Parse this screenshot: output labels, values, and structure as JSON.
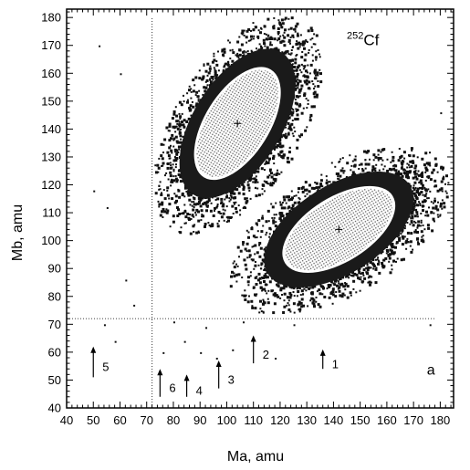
{
  "chart_data": {
    "type": "heatmap",
    "title": "",
    "xlabel": "Ma, amu",
    "ylabel": "Mb, amu",
    "xlim": [
      40,
      185
    ],
    "ylim": [
      40,
      183
    ],
    "x_ticks": [
      40,
      50,
      60,
      70,
      80,
      90,
      100,
      110,
      120,
      130,
      140,
      150,
      160,
      170,
      180
    ],
    "y_ticks": [
      40,
      50,
      60,
      70,
      80,
      90,
      100,
      110,
      120,
      130,
      140,
      150,
      160,
      170,
      180
    ],
    "isotope_label": {
      "mass": "252",
      "symbol": "Cf",
      "x": 145,
      "y": 170
    },
    "panel_label": {
      "text": "a",
      "x": 175,
      "y": 52
    },
    "guide_lines": {
      "vertical_x": 72,
      "horizontal_y": 72
    },
    "clusters": [
      {
        "name_label": "",
        "center": [
          104,
          142
        ],
        "rotation_deg": -58,
        "semi_axes": [
          29,
          11
        ]
      },
      {
        "name_label": "",
        "center": [
          142,
          104
        ],
        "rotation_deg": -32,
        "semi_axes": [
          29,
          11
        ]
      }
    ],
    "arrows": [
      {
        "label": "1",
        "x": 136,
        "y_tip": 61,
        "y_tail": 54
      },
      {
        "label": "2",
        "x": 110,
        "y_tip": 66,
        "y_tail": 56
      },
      {
        "label": "3",
        "x": 97,
        "y_tip": 57,
        "y_tail": 47
      },
      {
        "label": "4",
        "x": 85,
        "y_tip": 52,
        "y_tail": 44
      },
      {
        "label": "5",
        "x": 50,
        "y_tip": 62,
        "y_tail": 51
      },
      {
        "label": "6",
        "x": 75,
        "y_tip": 54,
        "y_tail": 44
      }
    ]
  }
}
